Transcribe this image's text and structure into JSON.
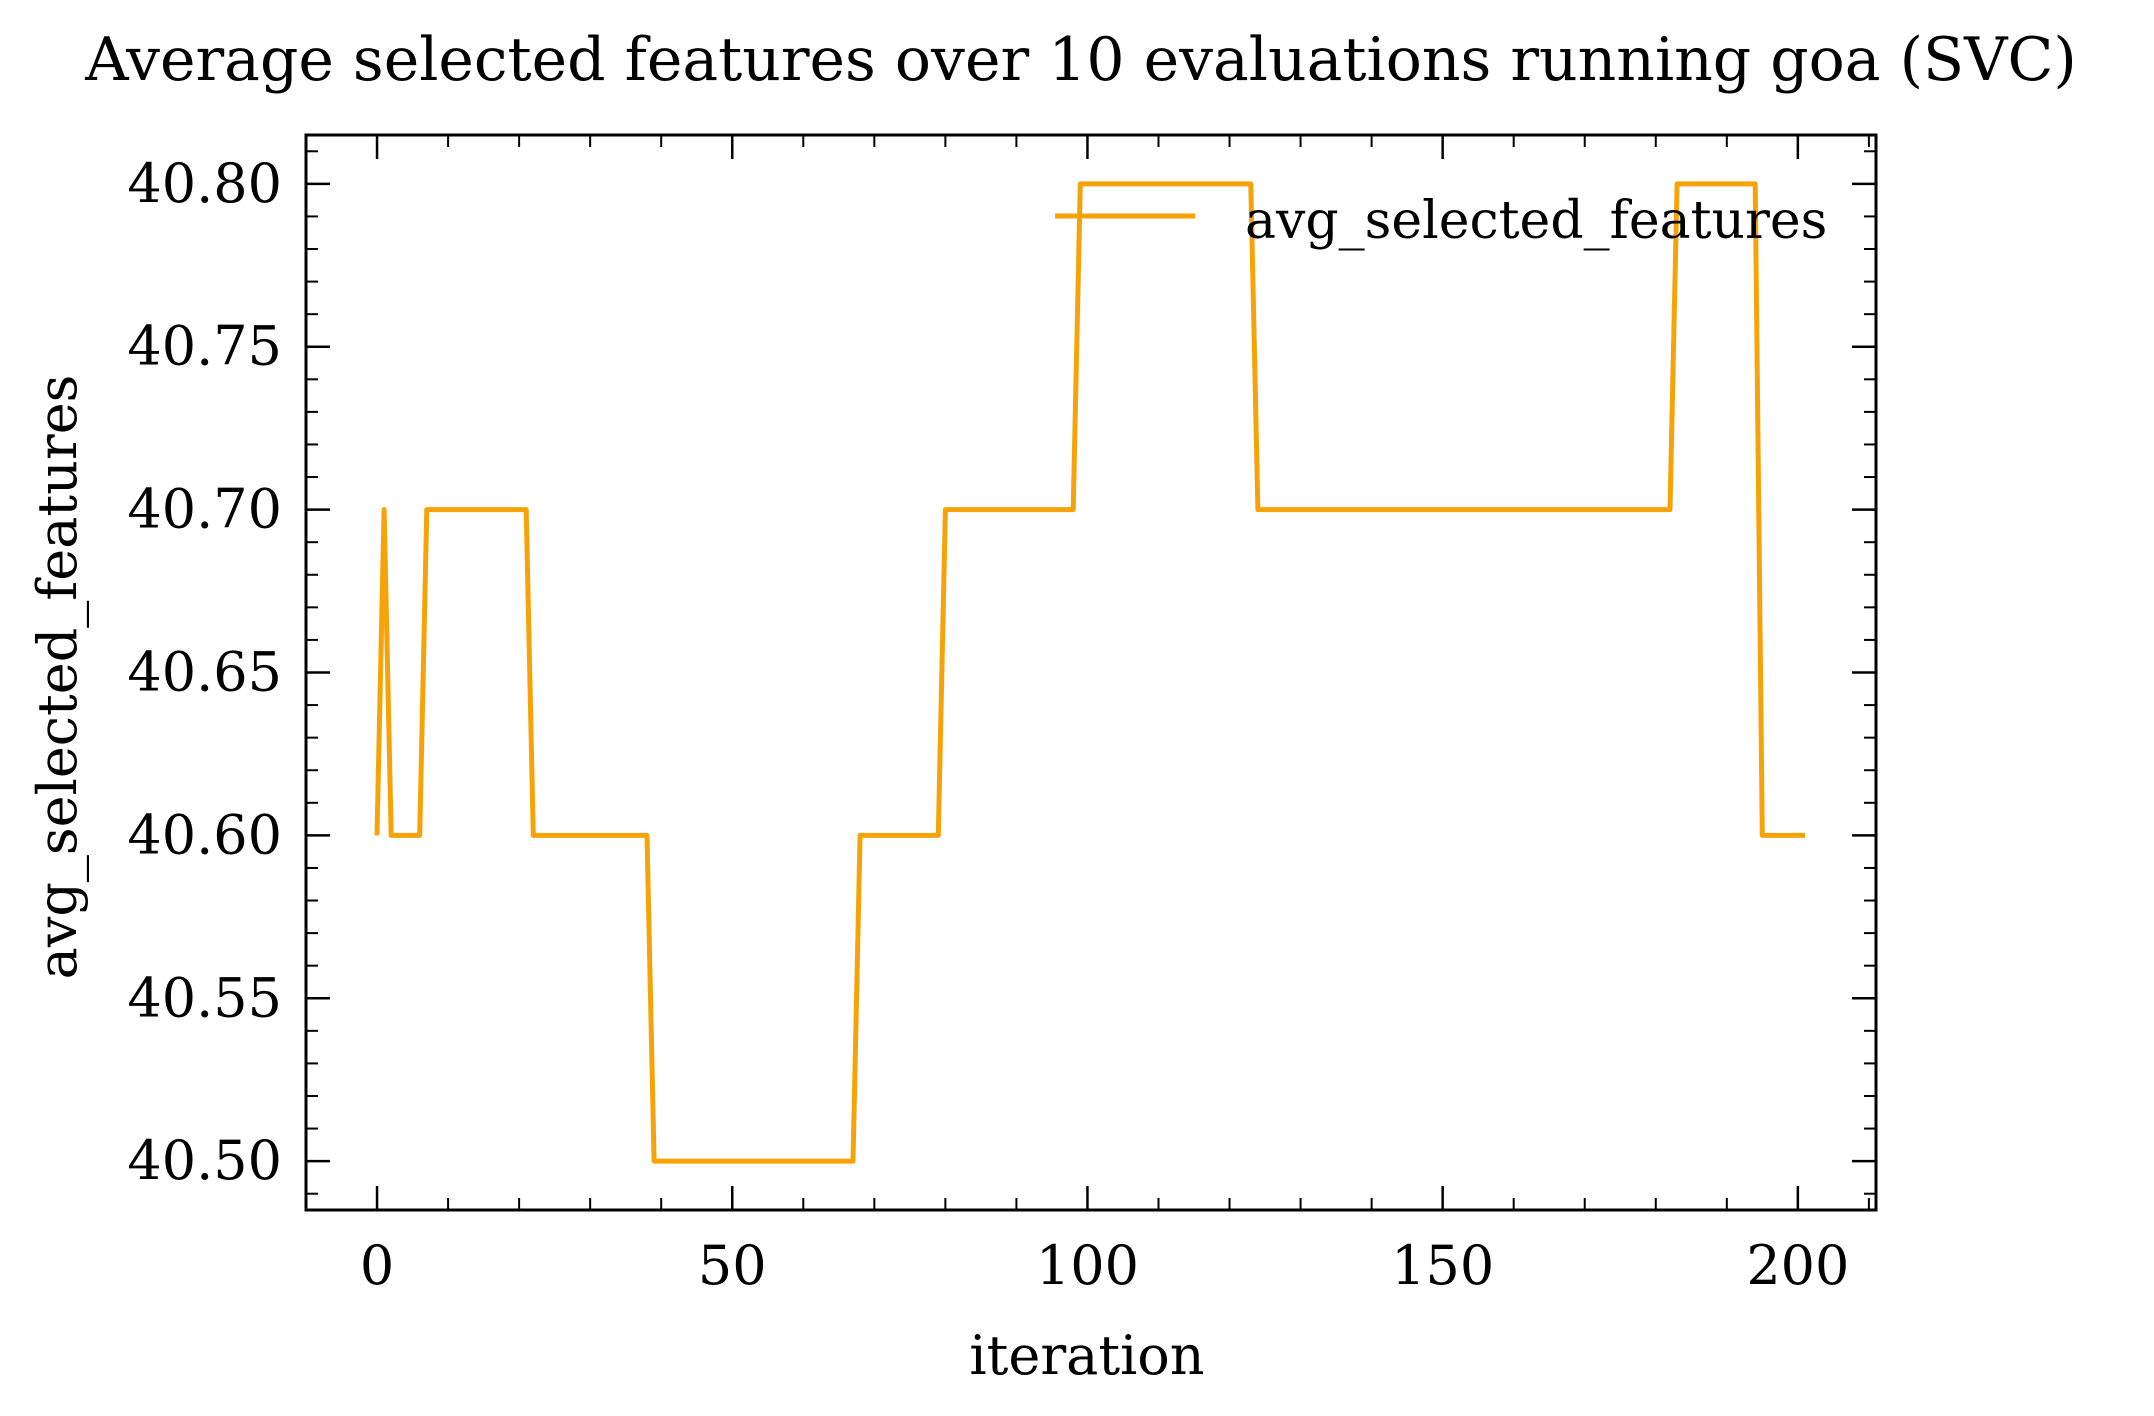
{
  "chart_data": {
    "type": "line",
    "title": "Average selected features over 10 evaluations running goa (SVC)",
    "xlabel": "iteration",
    "ylabel": "avg_selected_features",
    "xlim": [
      -10,
      211
    ],
    "ylim": [
      40.485,
      40.815
    ],
    "xticks": [
      0,
      50,
      100,
      150,
      200
    ],
    "xtick_labels": [
      "0",
      "50",
      "100",
      "150",
      "200"
    ],
    "yticks": [
      40.5,
      40.55,
      40.6,
      40.65,
      40.7,
      40.75,
      40.8
    ],
    "ytick_labels": [
      "40.50",
      "40.55",
      "40.60",
      "40.65",
      "40.70",
      "40.75",
      "40.80"
    ],
    "grid": false,
    "legend": "upper-right",
    "line_color": "#f5a309",
    "series": [
      {
        "name": "avg_selected_features",
        "x": [
          0,
          1,
          2,
          6,
          7,
          21,
          22,
          38,
          39,
          67,
          68,
          79,
          80,
          98,
          99,
          123,
          124,
          182,
          183,
          194,
          195,
          201
        ],
        "y": [
          40.6,
          40.7,
          40.6,
          40.6,
          40.7,
          40.7,
          40.6,
          40.6,
          40.5,
          40.5,
          40.6,
          40.6,
          40.7,
          40.7,
          40.8,
          40.8,
          40.7,
          40.7,
          40.8,
          40.8,
          40.6,
          40.6
        ]
      }
    ]
  }
}
